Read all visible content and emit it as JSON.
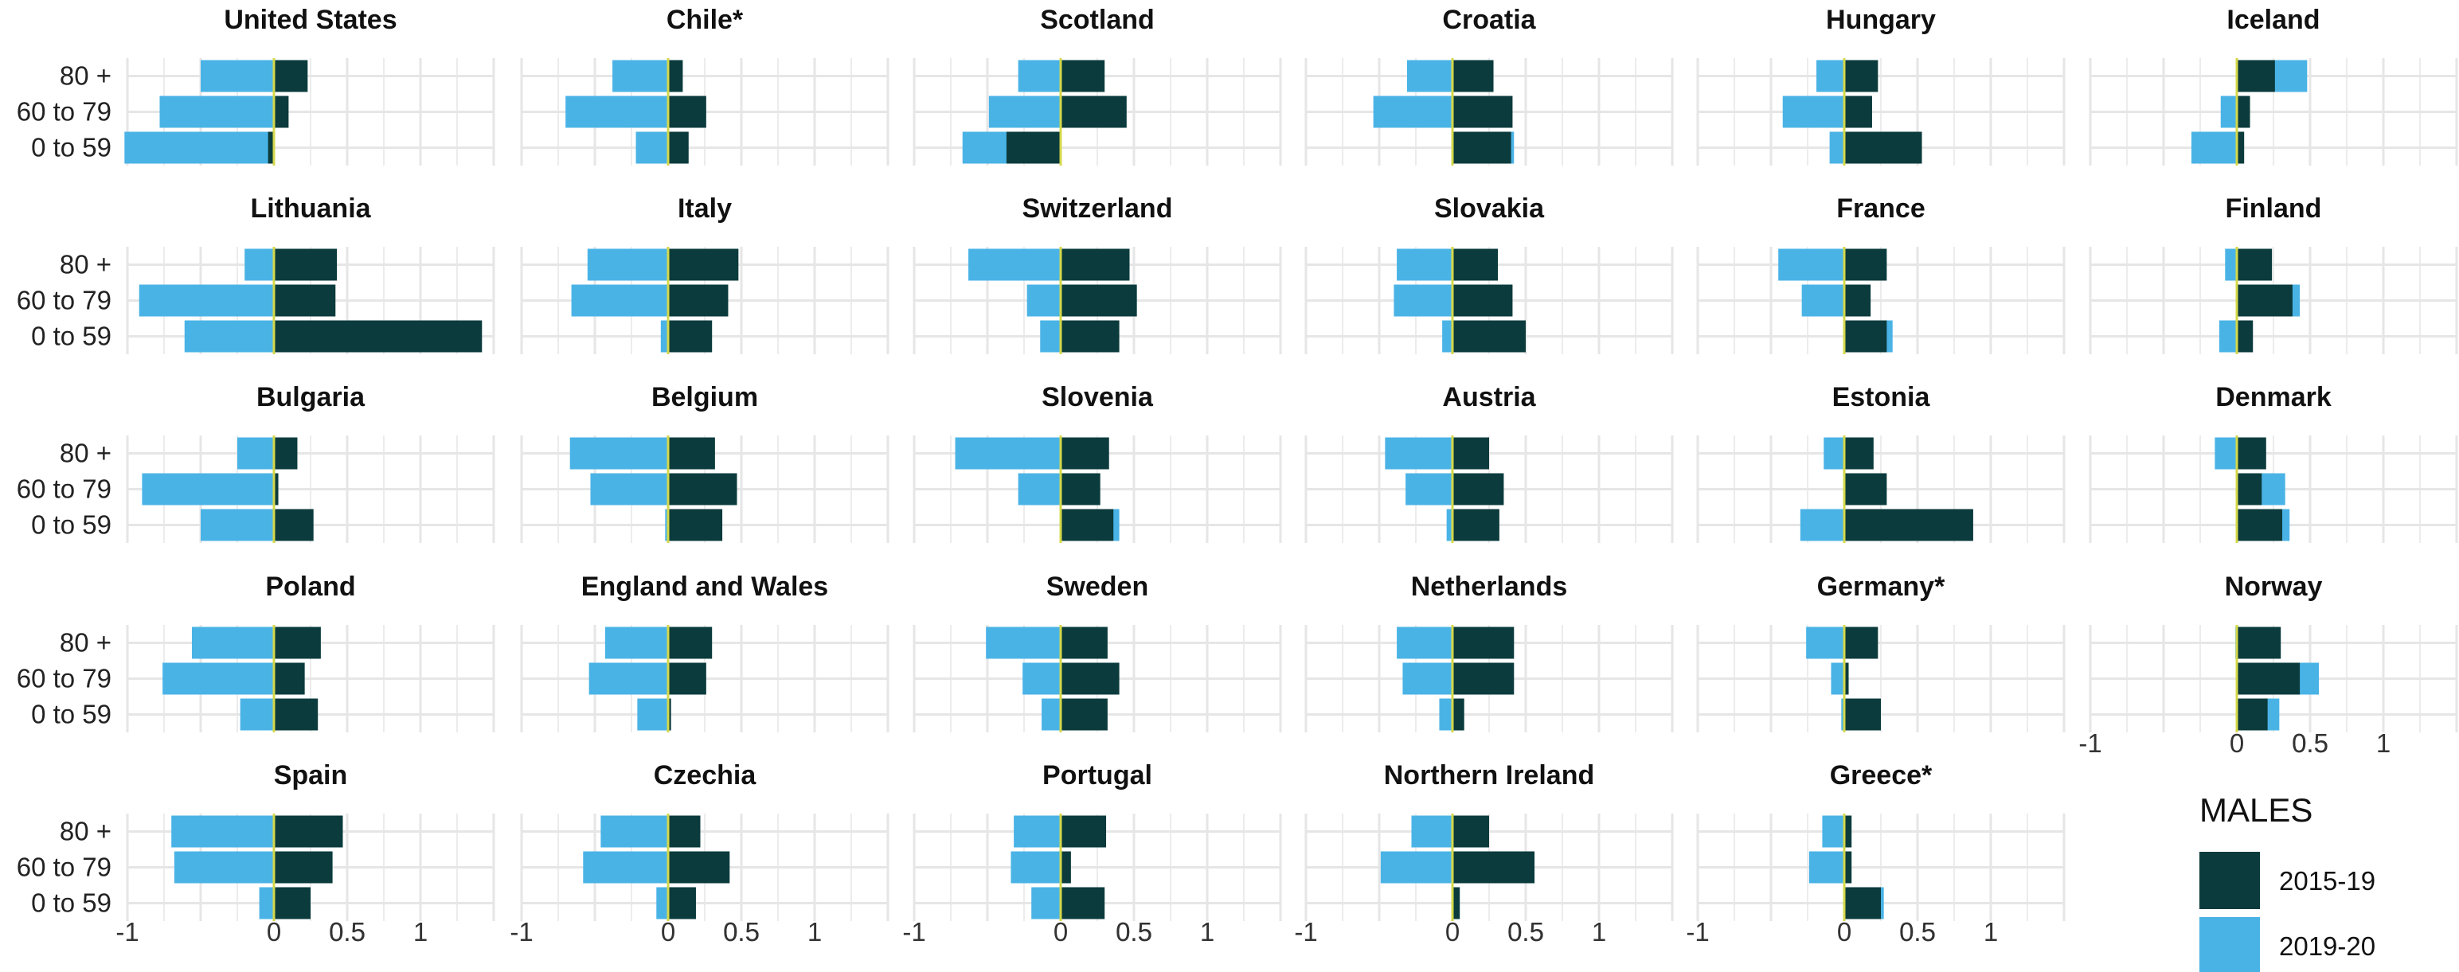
{
  "colors": {
    "series_2015_19": "#0b3b3c",
    "series_2019_20": "#4ab3e6",
    "zero_line": "#d4d84a",
    "grid": "#e6e6e6"
  },
  "chart_data": {
    "type": "bar",
    "orientation": "horizontal",
    "layout": "small-multiples",
    "categories": [
      "80 +",
      "60 to 79",
      "0 to 59"
    ],
    "xlim": [
      -1,
      1.5
    ],
    "x_ticks": [
      -1,
      0.5,
      0,
      0.5,
      1
    ],
    "x_tick_labels": [
      "-1",
      "0.5",
      "0",
      "0.5",
      "1"
    ],
    "legend": {
      "title": "MALES",
      "placement": "bottom-right",
      "entries": [
        "2015-19",
        "2019-20"
      ]
    },
    "series_names": [
      "2015-19",
      "2019-20"
    ],
    "panels": [
      {
        "title": "United States",
        "s2015_19": [
          0.23,
          0.1,
          -0.04
        ],
        "s2019_20": [
          -0.5,
          -0.78,
          -1.02
        ]
      },
      {
        "title": "Chile*",
        "s2015_19": [
          0.1,
          0.26,
          0.14
        ],
        "s2019_20": [
          -0.38,
          -0.7,
          -0.22
        ]
      },
      {
        "title": "Scotland",
        "s2015_19": [
          0.3,
          0.45,
          -0.37
        ],
        "s2019_20": [
          -0.29,
          -0.49,
          -0.67
        ]
      },
      {
        "title": "Croatia",
        "s2015_19": [
          0.28,
          0.41,
          0.4
        ],
        "s2019_20": [
          -0.31,
          -0.54,
          0.42
        ]
      },
      {
        "title": "Hungary",
        "s2015_19": [
          0.23,
          0.19,
          0.53
        ],
        "s2019_20": [
          -0.19,
          -0.42,
          -0.1
        ]
      },
      {
        "title": "Iceland",
        "s2015_19": [
          0.26,
          0.09,
          0.05
        ],
        "s2019_20": [
          0.48,
          -0.11,
          -0.31
        ]
      },
      {
        "title": "Lithuania",
        "s2015_19": [
          0.43,
          0.42,
          1.42
        ],
        "s2019_20": [
          -0.2,
          -0.92,
          -0.61
        ]
      },
      {
        "title": "Italy",
        "s2015_19": [
          0.48,
          0.41,
          0.3
        ],
        "s2019_20": [
          -0.55,
          -0.66,
          -0.05
        ]
      },
      {
        "title": "Switzerland",
        "s2015_19": [
          0.47,
          0.52,
          0.4
        ],
        "s2019_20": [
          -0.63,
          -0.23,
          -0.14
        ]
      },
      {
        "title": "Slovakia",
        "s2015_19": [
          0.31,
          0.41,
          0.5
        ],
        "s2019_20": [
          -0.38,
          -0.4,
          -0.07
        ]
      },
      {
        "title": "France",
        "s2015_19": [
          0.29,
          0.18,
          0.29
        ],
        "s2019_20": [
          -0.45,
          -0.29,
          0.33
        ]
      },
      {
        "title": "Finland",
        "s2015_19": [
          0.24,
          0.38,
          0.11
        ],
        "s2019_20": [
          -0.08,
          0.43,
          -0.12
        ]
      },
      {
        "title": "Bulgaria",
        "s2015_19": [
          0.16,
          0.03,
          0.27
        ],
        "s2019_20": [
          -0.25,
          -0.9,
          -0.5
        ]
      },
      {
        "title": "Belgium",
        "s2015_19": [
          0.32,
          0.47,
          0.37
        ],
        "s2019_20": [
          -0.67,
          -0.53,
          -0.02
        ]
      },
      {
        "title": "Slovenia",
        "s2015_19": [
          0.33,
          0.27,
          0.36
        ],
        "s2019_20": [
          -0.72,
          -0.29,
          0.4
        ]
      },
      {
        "title": "Austria",
        "s2015_19": [
          0.25,
          0.35,
          0.32
        ],
        "s2019_20": [
          -0.46,
          -0.32,
          -0.04
        ]
      },
      {
        "title": "Estonia",
        "s2015_19": [
          0.2,
          0.29,
          0.88
        ],
        "s2019_20": [
          -0.14,
          0.0,
          -0.3
        ]
      },
      {
        "title": "Denmark",
        "s2015_19": [
          0.2,
          0.17,
          0.31
        ],
        "s2019_20": [
          -0.15,
          0.33,
          0.36
        ]
      },
      {
        "title": "Poland",
        "s2015_19": [
          0.32,
          0.21,
          0.3
        ],
        "s2019_20": [
          -0.56,
          -0.76,
          -0.23
        ]
      },
      {
        "title": "England and Wales",
        "s2015_19": [
          0.3,
          0.26,
          0.02
        ],
        "s2019_20": [
          -0.43,
          -0.54,
          -0.21
        ]
      },
      {
        "title": "Sweden",
        "s2015_19": [
          0.32,
          0.4,
          0.32
        ],
        "s2019_20": [
          -0.51,
          -0.26,
          -0.13
        ]
      },
      {
        "title": "Netherlands",
        "s2015_19": [
          0.42,
          0.42,
          0.08
        ],
        "s2019_20": [
          -0.38,
          -0.34,
          -0.09
        ]
      },
      {
        "title": "Germany*",
        "s2015_19": [
          0.23,
          0.03,
          0.25
        ],
        "s2019_20": [
          -0.26,
          -0.09,
          -0.02
        ]
      },
      {
        "title": "Norway",
        "s2015_19": [
          0.3,
          0.43,
          0.21
        ],
        "s2019_20": [
          -0.01,
          0.56,
          0.29
        ]
      },
      {
        "title": "Spain",
        "s2015_19": [
          0.47,
          0.4,
          0.25
        ],
        "s2019_20": [
          -0.7,
          -0.68,
          -0.1
        ]
      },
      {
        "title": "Czechia",
        "s2015_19": [
          0.22,
          0.42,
          0.19
        ],
        "s2019_20": [
          -0.46,
          -0.58,
          -0.08
        ]
      },
      {
        "title": "Portugal",
        "s2015_19": [
          0.31,
          0.07,
          0.3
        ],
        "s2019_20": [
          -0.32,
          -0.34,
          -0.2
        ]
      },
      {
        "title": "Northern Ireland",
        "s2015_19": [
          0.25,
          0.56,
          0.05
        ],
        "s2019_20": [
          -0.28,
          -0.49,
          0.03
        ]
      },
      {
        "title": "Greece*",
        "s2015_19": [
          0.05,
          0.05,
          0.25
        ],
        "s2019_20": [
          -0.15,
          -0.24,
          0.27
        ]
      }
    ]
  }
}
